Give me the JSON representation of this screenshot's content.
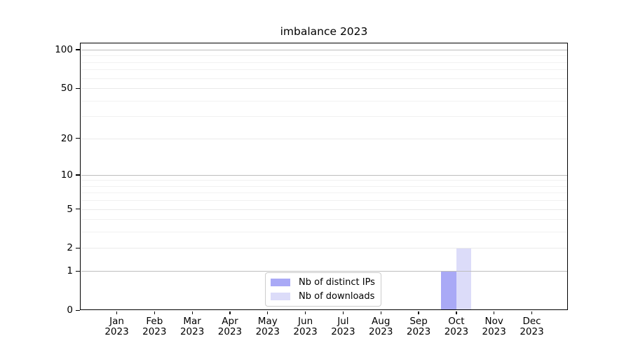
{
  "chart_data": {
    "type": "bar",
    "title": "imbalance 2023",
    "categories": [
      "Jan",
      "Feb",
      "Mar",
      "Apr",
      "May",
      "Jun",
      "Jul",
      "Aug",
      "Sep",
      "Oct",
      "Nov",
      "Dec"
    ],
    "year_label": "2023",
    "series": [
      {
        "name": "Nb of distinct IPs",
        "color": "#a9a9f6",
        "values": [
          0,
          0,
          0,
          0,
          0,
          0,
          0,
          0,
          0,
          1,
          0,
          0
        ]
      },
      {
        "name": "Nb of downloads",
        "color": "#dcdcf9",
        "values": [
          0,
          0,
          0,
          0,
          0,
          0,
          0,
          0,
          0,
          2,
          0,
          0
        ]
      }
    ],
    "xlabel": "",
    "ylabel": "",
    "y_axis": {
      "scale": "log10(1+v)",
      "tick_values": [
        0,
        1,
        2,
        5,
        10,
        20,
        50,
        100
      ],
      "tick_labels": [
        "0",
        "1",
        "2",
        "5",
        "10",
        "20",
        "50",
        "100"
      ],
      "major_decade_lines": [
        1,
        10,
        100
      ],
      "minor_gridline_values": [
        3,
        4,
        6,
        7,
        8,
        9,
        30,
        40,
        60,
        70,
        80,
        90
      ],
      "ylim": [
        0,
        113
      ]
    },
    "grid": true,
    "legend_position": "lower center",
    "colors": {
      "grid_major": "#bdbdbd",
      "grid_labeled": "#eaeaea",
      "grid_minor": "#f1f1f1",
      "axis": "#000000",
      "background": "#ffffff",
      "legend_border": "#cccccc"
    }
  }
}
